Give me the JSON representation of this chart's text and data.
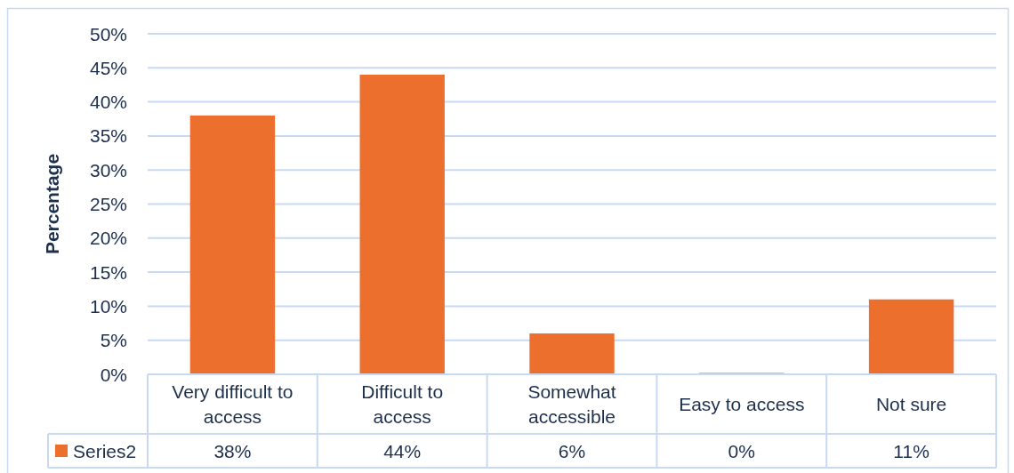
{
  "chart_data": {
    "type": "bar",
    "ylabel": "Percentage",
    "categories": [
      "Very difficult to access",
      "Difficult to access",
      "Somewhat accessible",
      "Easy to access",
      "Not sure"
    ],
    "series": [
      {
        "name": "Series2",
        "color": "#ec6f2d",
        "values": [
          38,
          44,
          6,
          0.2,
          11
        ],
        "value_labels": [
          "38%",
          "44%",
          "6%",
          "0%",
          "11%"
        ]
      }
    ],
    "ylim": [
      0,
      50
    ],
    "yticks": [
      {
        "value": 0,
        "label": "0%"
      },
      {
        "value": 5,
        "label": "5%"
      },
      {
        "value": 10,
        "label": "10%"
      },
      {
        "value": 15,
        "label": "15%"
      },
      {
        "value": 20,
        "label": "20%"
      },
      {
        "value": 25,
        "label": "25%"
      },
      {
        "value": 30,
        "label": "30%"
      },
      {
        "value": 35,
        "label": "35%"
      },
      {
        "value": 40,
        "label": "40%"
      },
      {
        "value": 45,
        "label": "45%"
      },
      {
        "value": 50,
        "label": "50%"
      }
    ],
    "grid": "y",
    "legend": "bottom"
  }
}
